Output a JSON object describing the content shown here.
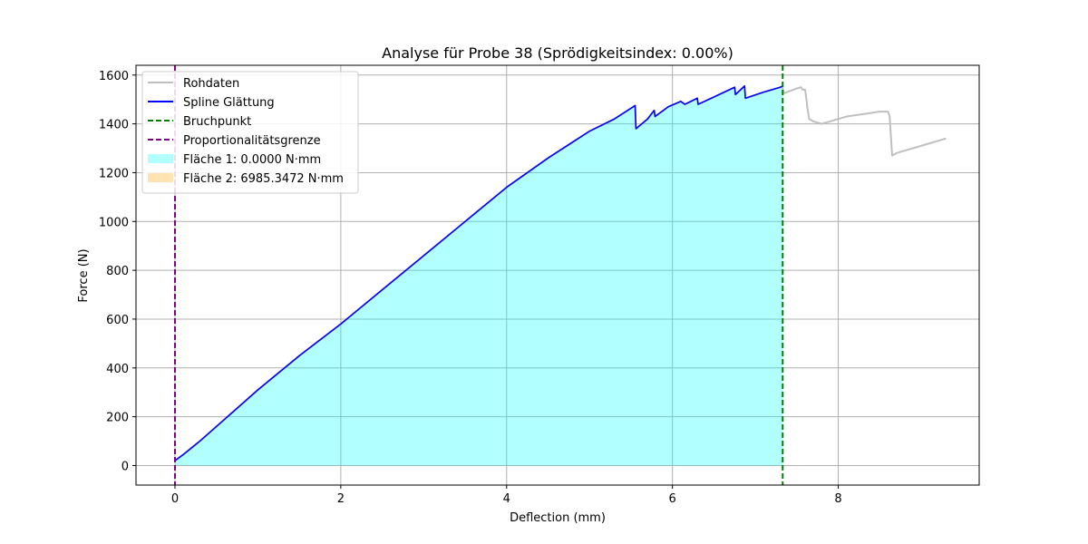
{
  "chart_data": {
    "type": "line",
    "title": "Analyse für Probe 38 (Sprödigkeitsindex: 0.00%)",
    "xlabel": "Deflection (mm)",
    "ylabel": "Force (N)",
    "xlim": [
      -0.47,
      9.7
    ],
    "ylim": [
      -80,
      1640
    ],
    "xticks": [
      0,
      2,
      4,
      6,
      8
    ],
    "yticks": [
      0,
      200,
      400,
      600,
      800,
      1000,
      1200,
      1400,
      1600
    ],
    "grid": true,
    "legend_position": "upper-left",
    "series": [
      {
        "name": "Rohdaten",
        "color": "#bfbfbf",
        "style": "solid",
        "x": [
          0,
          0.1,
          0.3,
          0.6,
          1.0,
          1.5,
          2.0,
          2.5,
          3.0,
          3.5,
          4.0,
          4.5,
          5.0,
          5.3,
          5.55,
          5.56,
          5.7,
          5.78,
          5.79,
          5.95,
          6.1,
          6.15,
          6.3,
          6.31,
          6.5,
          6.75,
          6.76,
          6.87,
          6.88,
          7.1,
          7.3,
          7.33,
          7.34,
          7.5,
          7.55,
          7.57,
          7.6,
          7.62,
          7.63,
          7.65,
          7.7,
          7.8,
          7.9,
          8.0,
          8.1,
          8.2,
          8.3,
          8.4,
          8.5,
          8.6,
          8.62,
          8.65,
          8.7,
          8.8,
          8.9,
          9.0,
          9.1,
          9.2,
          9.3
        ],
        "y": [
          20,
          45,
          100,
          190,
          310,
          450,
          580,
          720,
          860,
          1000,
          1140,
          1260,
          1370,
          1420,
          1475,
          1380,
          1420,
          1455,
          1430,
          1470,
          1492,
          1480,
          1505,
          1480,
          1510,
          1550,
          1520,
          1555,
          1505,
          1530,
          1550,
          1550,
          1525,
          1545,
          1550,
          1540,
          1540,
          1490,
          1460,
          1420,
          1410,
          1400,
          1410,
          1420,
          1430,
          1435,
          1440,
          1445,
          1450,
          1450,
          1430,
          1270,
          1280,
          1290,
          1300,
          1310,
          1320,
          1330,
          1340
        ]
      },
      {
        "name": "Spline Glättung",
        "color": "#0000ff",
        "style": "solid",
        "x": [
          0,
          0.1,
          0.3,
          0.6,
          1.0,
          1.5,
          2.0,
          2.5,
          3.0,
          3.5,
          4.0,
          4.5,
          5.0,
          5.3,
          5.55,
          5.56,
          5.7,
          5.78,
          5.79,
          5.95,
          6.1,
          6.15,
          6.3,
          6.31,
          6.5,
          6.75,
          6.76,
          6.87,
          6.88,
          7.1,
          7.3,
          7.33
        ],
        "y": [
          20,
          45,
          100,
          190,
          310,
          450,
          580,
          720,
          860,
          1000,
          1140,
          1260,
          1370,
          1420,
          1475,
          1380,
          1420,
          1455,
          1430,
          1470,
          1492,
          1480,
          1505,
          1480,
          1510,
          1550,
          1520,
          1555,
          1505,
          1530,
          1550,
          1555
        ]
      }
    ],
    "vlines": [
      {
        "name": "Bruchpunkt",
        "x": 7.33,
        "color": "#008000",
        "style": "dashed"
      },
      {
        "name": "Proportionalitätsgrenze",
        "x": 0,
        "color": "#800080",
        "style": "dashed"
      }
    ],
    "areas": [
      {
        "name": "Fläche 1: 0.0000 N·mm",
        "color": "#00ffff",
        "opacity": 0.3
      },
      {
        "name": "Fläche 2: 6985.3472 N·mm",
        "color": "#ffa500",
        "opacity": 0.3,
        "fill_under_series": "Spline Glättung",
        "fill_color": "#00ffff"
      }
    ],
    "legend": [
      {
        "label": "Rohdaten",
        "kind": "line",
        "color": "#bfbfbf",
        "style": "solid"
      },
      {
        "label": "Spline Glättung",
        "kind": "line",
        "color": "#0000ff",
        "style": "solid"
      },
      {
        "label": "Bruchpunkt",
        "kind": "line",
        "color": "#008000",
        "style": "dashed"
      },
      {
        "label": "Proportionalitätsgrenze",
        "kind": "line",
        "color": "#800080",
        "style": "dashed"
      },
      {
        "label": "Fläche 1: 0.0000 N·mm",
        "kind": "patch",
        "color": "#00ffff"
      },
      {
        "label": "Fläche 2: 6985.3472 N·mm",
        "kind": "patch",
        "color": "#ffa500"
      }
    ]
  }
}
